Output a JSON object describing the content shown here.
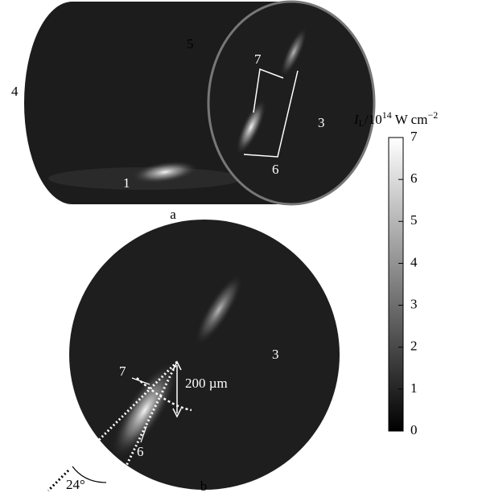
{
  "panel_a": {
    "labels": {
      "l5": "5",
      "l4": "4",
      "l7": "7",
      "l3": "3",
      "l6": "6",
      "l1": "1"
    },
    "caption": "a"
  },
  "panel_b": {
    "labels": {
      "l7": "7",
      "l6": "6",
      "l3": "3"
    },
    "distance": "200 µm",
    "angle": "24°",
    "caption": "b"
  },
  "colorbar": {
    "title": {
      "symbol": "I",
      "sub": "L",
      "base": "/10",
      "exp": "14",
      "unit": " W cm",
      "unit_exp": "−2"
    },
    "lim": [
      0,
      7
    ],
    "ticks": [
      0,
      1,
      2,
      3,
      4,
      5,
      6,
      7
    ]
  }
}
